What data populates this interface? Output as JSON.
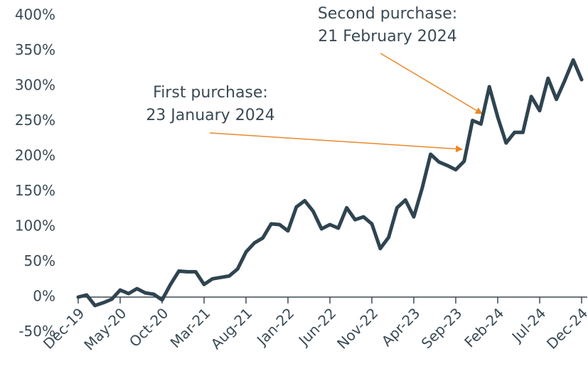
{
  "chart_data": {
    "type": "line",
    "categories": [
      "Dec-19",
      null,
      null,
      null,
      null,
      "May-20",
      null,
      null,
      null,
      null,
      "Oct-20",
      null,
      null,
      null,
      null,
      "Mar-21",
      null,
      null,
      null,
      null,
      "Aug-21",
      null,
      null,
      null,
      null,
      "Jan-22",
      null,
      null,
      null,
      null,
      "Jun-22",
      null,
      null,
      null,
      null,
      "Nov-22",
      null,
      null,
      null,
      null,
      "Apr-23",
      null,
      null,
      null,
      null,
      "Sep-23",
      null,
      null,
      null,
      null,
      "Feb-24",
      null,
      null,
      null,
      null,
      "Jul-24",
      null,
      null,
      null,
      null,
      "Dec-24"
    ],
    "series": [
      {
        "color": "#2f4450",
        "values": [
          0,
          3,
          -12,
          -8,
          -3,
          10,
          5,
          12,
          6,
          4,
          -4,
          18,
          37,
          36,
          36,
          18,
          26,
          28,
          30,
          40,
          64,
          77,
          84,
          104,
          103,
          94,
          128,
          137,
          122,
          97,
          103,
          98,
          127,
          110,
          114,
          104,
          69,
          85,
          127,
          138,
          114,
          155,
          203,
          192,
          187,
          181,
          193,
          251,
          246,
          299,
          256,
          219,
          234,
          234,
          285,
          265,
          311,
          281,
          308,
          337,
          309
        ]
      }
    ],
    "ylim": [
      -50,
      400
    ],
    "yticks": [
      {
        "value": -50,
        "label": "-50%"
      },
      {
        "value": 0,
        "label": "0%"
      },
      {
        "value": 50,
        "label": "50%"
      },
      {
        "value": 100,
        "label": "100%"
      },
      {
        "value": 150,
        "label": "150%"
      },
      {
        "value": 200,
        "label": "200%"
      },
      {
        "value": 250,
        "label": "250%"
      },
      {
        "value": 300,
        "label": "300%"
      },
      {
        "value": 350,
        "label": "350%"
      },
      {
        "value": 400,
        "label": "400%"
      }
    ],
    "grid": false,
    "annotations": [
      {
        "lines": [
          "First purchase:",
          "23 January 2024"
        ]
      },
      {
        "lines": [
          "Second purchase:",
          "21 February 2024"
        ]
      }
    ]
  }
}
